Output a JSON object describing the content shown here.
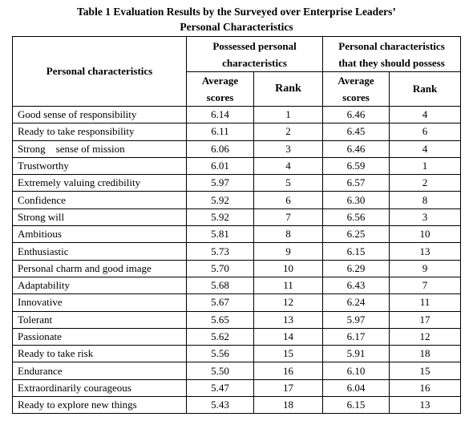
{
  "caption": {
    "line1": "Table 1 Evaluation Results by the Surveyed over Enterprise Leaders’",
    "line2": "Personal Characteristics"
  },
  "header": {
    "col1": "Personal characteristics",
    "group1": {
      "line1": "Possessed personal",
      "line2": "characteristics"
    },
    "group2": {
      "line1": "Personal characteristics",
      "line2": "that they should possess"
    },
    "avg_line1": "Average",
    "avg_line2": "scores",
    "rank": "Rank"
  },
  "rows": [
    {
      "name": "Good sense of responsibility",
      "avg1": "6.14",
      "rank1": "1",
      "avg2": "6.46",
      "rank2": "4"
    },
    {
      "name": "Ready to take responsibility",
      "avg1": "6.11",
      "rank1": "2",
      "avg2": "6.45",
      "rank2": "6"
    },
    {
      "name": "Strong    sense of mission",
      "avg1": "6.06",
      "rank1": "3",
      "avg2": "6.46",
      "rank2": "4"
    },
    {
      "name": "Trustworthy",
      "avg1": "6.01",
      "rank1": "4",
      "avg2": "6.59",
      "rank2": "1"
    },
    {
      "name": "Extremely valuing credibility",
      "avg1": "5.97",
      "rank1": "5",
      "avg2": "6.57",
      "rank2": "2"
    },
    {
      "name": "Confidence",
      "avg1": "5.92",
      "rank1": "6",
      "avg2": "6.30",
      "rank2": "8"
    },
    {
      "name": "Strong will",
      "avg1": "5.92",
      "rank1": "7",
      "avg2": "6.56",
      "rank2": "3"
    },
    {
      "name": "Ambitious",
      "avg1": "5.81",
      "rank1": "8",
      "avg2": "6.25",
      "rank2": "10"
    },
    {
      "name": "Enthusiastic",
      "avg1": "5.73",
      "rank1": "9",
      "avg2": "6.15",
      "rank2": "13"
    },
    {
      "name": "Personal charm and good image",
      "avg1": "5.70",
      "rank1": "10",
      "avg2": "6.29",
      "rank2": "9"
    },
    {
      "name": "Adaptability",
      "avg1": "5.68",
      "rank1": "11",
      "avg2": "6.43",
      "rank2": "7"
    },
    {
      "name": "Innovative",
      "avg1": "5.67",
      "rank1": "12",
      "avg2": "6.24",
      "rank2": "11"
    },
    {
      "name": "Tolerant",
      "avg1": "5.65",
      "rank1": "13",
      "avg2": "5.97",
      "rank2": "17"
    },
    {
      "name": "Passionate",
      "avg1": "5.62",
      "rank1": "14",
      "avg2": "6.17",
      "rank2": "12"
    },
    {
      "name": "Ready to take risk",
      "avg1": "5.56",
      "rank1": "15",
      "avg2": "5.91",
      "rank2": "18"
    },
    {
      "name": "Endurance",
      "avg1": "5.50",
      "rank1": "16",
      "avg2": "6.10",
      "rank2": "15"
    },
    {
      "name": "Extraordinarily courageous",
      "avg1": "5.47",
      "rank1": "17",
      "avg2": "6.04",
      "rank2": "16"
    },
    {
      "name": "Ready to explore new things",
      "avg1": "5.43",
      "rank1": "18",
      "avg2": "6.15",
      "rank2": "13"
    }
  ]
}
